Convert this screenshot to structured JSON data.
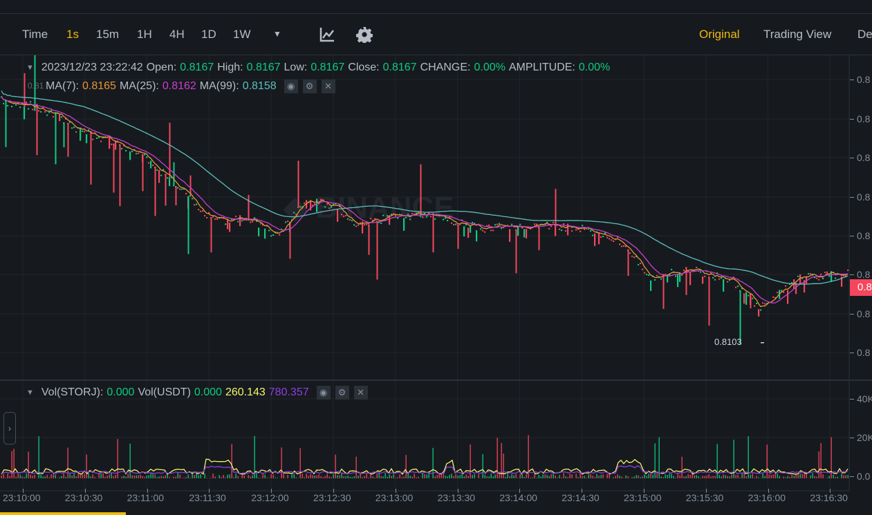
{
  "toolbar": {
    "intervals": [
      "Time",
      "1s",
      "15m",
      "1H",
      "4H",
      "1D",
      "1W"
    ],
    "active_interval": "1s",
    "views": [
      "Original",
      "Trading View",
      "De"
    ],
    "active_view": "Original"
  },
  "ohlc": {
    "datetime": "2023/12/23 23:22:42",
    "open_label": "Open:",
    "open": "0.8167",
    "high_label": "High:",
    "high": "0.8167",
    "low_label": "Low:",
    "low": "0.8167",
    "close_label": "Close:",
    "close": "0.8167",
    "change_label": "CHANGE:",
    "change": "0.00%",
    "amplitude_label": "AMPLITUDE:",
    "amplitude": "0.00%"
  },
  "ma": {
    "ma7_label": "MA(7):",
    "ma7": "0.8165",
    "ma25_label": "MA(25):",
    "ma25": "0.8162",
    "ma99_label": "MA(99):",
    "ma99": "0.8158",
    "partial_label": "0.81"
  },
  "volume": {
    "vol_base_label": "Vol(STORJ):",
    "vol_base": "0.000",
    "vol_quote_label": "Vol(USDT)",
    "vol_quote": "0.000",
    "ma5": "260.143",
    "ma10": "780.357",
    "axis": [
      "40K",
      "20K",
      "0.0"
    ]
  },
  "price_axis": [
    "0.8",
    "0.8",
    "0.8",
    "0.8",
    "0.8",
    "0.8",
    "0.8",
    "0.8"
  ],
  "current_price": "0.8",
  "low_marker": "0.8103",
  "time_axis": [
    "23:10:00",
    "23:10:30",
    "23:11:00",
    "23:11:30",
    "23:12:00",
    "23:12:30",
    "23:13:00",
    "23:13:30",
    "23:14:00",
    "23:14:30",
    "23:15:00",
    "23:15:30",
    "23:16:00",
    "23:16:30"
  ],
  "colors": {
    "up": "#0ecb81",
    "down": "#f6465d",
    "accent": "#f0b90b",
    "ma7": "#e6953a",
    "ma25": "#c940d0",
    "ma99": "#5fbfbf",
    "vol_ma5": "#f5f56a",
    "vol_ma10": "#8d3fe0"
  }
}
